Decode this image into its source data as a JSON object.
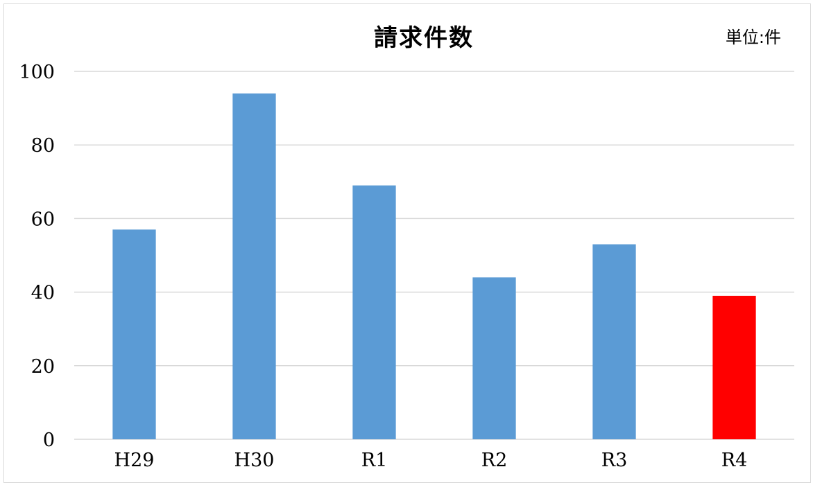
{
  "chart_data": {
    "type": "bar",
    "title": "請求件数",
    "unit_label": "単位:件",
    "categories": [
      "H29",
      "H30",
      "R1",
      "R2",
      "R3",
      "R4"
    ],
    "values": [
      57,
      94,
      69,
      44,
      53,
      39
    ],
    "bar_colors": [
      "#5b9bd5",
      "#5b9bd5",
      "#5b9bd5",
      "#5b9bd5",
      "#5b9bd5",
      "#ff0000"
    ],
    "ylim": [
      0,
      100
    ],
    "yticks": [
      "0",
      "20",
      "40",
      "60",
      "80",
      "100"
    ],
    "ytick_values": [
      0,
      20,
      40,
      60,
      80,
      100
    ],
    "grid": true,
    "legend": "none"
  }
}
